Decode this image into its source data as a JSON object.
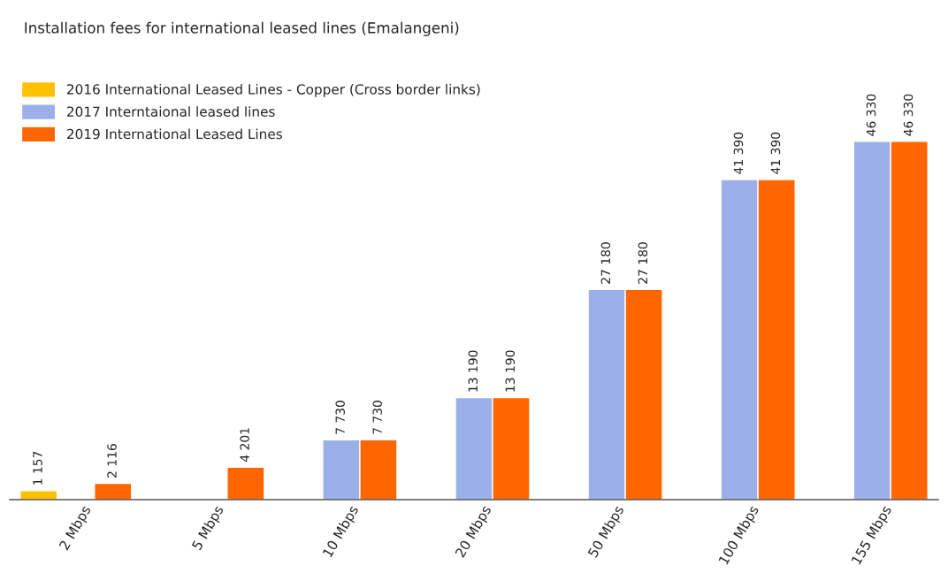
{
  "chart_data": {
    "type": "bar",
    "title": "Installation fees for international leased lines (Emalangeni)",
    "categories": [
      "2 Mbps",
      "5 Mbps",
      "10 Mbps",
      "20 Mbps",
      "50 Mbps",
      "100 Mbps",
      "155 Mbps"
    ],
    "series": [
      {
        "name": "2016 International Leased Lines - Copper (Cross border links)",
        "color": "#ffc000",
        "values": [
          1157,
          null,
          null,
          null,
          null,
          null,
          null
        ],
        "value_labels": [
          "1 157",
          null,
          null,
          null,
          null,
          null,
          null
        ]
      },
      {
        "name": "2017 Interntaional leased lines",
        "color": "#9bb0e8",
        "values": [
          null,
          null,
          7730,
          13190,
          27180,
          41390,
          46330
        ],
        "value_labels": [
          null,
          null,
          "7 730",
          "13 190",
          "27 180",
          "41 390",
          "46 330"
        ]
      },
      {
        "name": "2019 International Leased Lines",
        "color": "#ff6600",
        "values": [
          2116,
          4201,
          7730,
          13190,
          27180,
          41390,
          46330
        ],
        "value_labels": [
          "2 116",
          "4 201",
          "7 730",
          "13 190",
          "27 180",
          "41 390",
          "46 330"
        ]
      }
    ],
    "legend": "top left",
    "tick_labels": "x"
  }
}
